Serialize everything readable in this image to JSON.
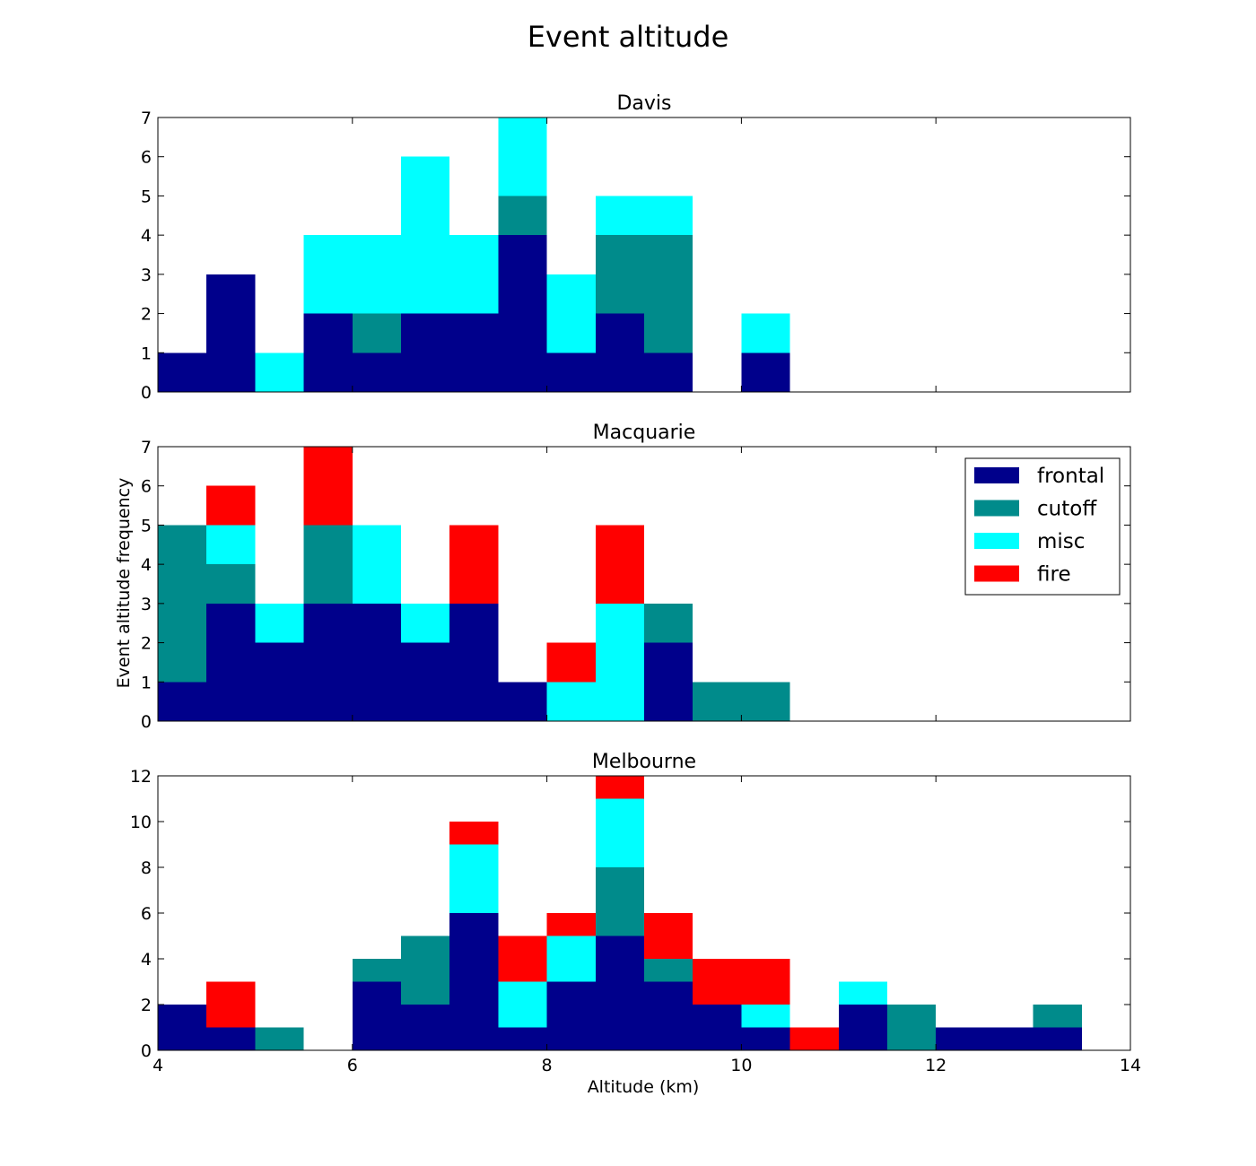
{
  "figure": {
    "title": "Event altitude",
    "xlabel": "Altitude (km)",
    "ylabel": "Event altitude frequency"
  },
  "colors": {
    "frontal": "#00008b",
    "cutoff": "#008b8b",
    "misc": "#00ffff",
    "fire": "#ff0000"
  },
  "legend": {
    "placement": "upper-right of Macquarie panel",
    "entries": [
      "frontal",
      "cutoff",
      "misc",
      "fire"
    ]
  },
  "chart_data": [
    {
      "type": "bar",
      "stacked": true,
      "title": "Davis",
      "xlim": [
        4,
        14
      ],
      "ylim": [
        0,
        7
      ],
      "xticks": [
        4,
        6,
        8,
        10,
        12,
        14
      ],
      "yticks": [
        0,
        1,
        2,
        3,
        4,
        5,
        6,
        7
      ],
      "x_tick_labels_visible": false,
      "bin_width": 0.5,
      "bin_starts": [
        4.0,
        4.5,
        5.0,
        5.5,
        6.0,
        6.5,
        7.0,
        7.5,
        8.0,
        8.5,
        9.0,
        9.5,
        10.0
      ],
      "series": [
        {
          "name": "frontal",
          "values": [
            1,
            3,
            0,
            2,
            1,
            2,
            2,
            4,
            1,
            2,
            1,
            0,
            1
          ]
        },
        {
          "name": "cutoff",
          "values": [
            0,
            0,
            0,
            0,
            1,
            0,
            0,
            1,
            0,
            2,
            3,
            0,
            0
          ]
        },
        {
          "name": "misc",
          "values": [
            0,
            0,
            1,
            2,
            2,
            4,
            2,
            2,
            2,
            1,
            1,
            0,
            1
          ]
        },
        {
          "name": "fire",
          "values": [
            0,
            0,
            0,
            0,
            0,
            0,
            0,
            0,
            0,
            0,
            0,
            0,
            0
          ]
        }
      ]
    },
    {
      "type": "bar",
      "stacked": true,
      "title": "Macquarie",
      "xlim": [
        4,
        14
      ],
      "ylim": [
        0,
        7
      ],
      "xticks": [
        4,
        6,
        8,
        10,
        12,
        14
      ],
      "yticks": [
        0,
        1,
        2,
        3,
        4,
        5,
        6,
        7
      ],
      "x_tick_labels_visible": false,
      "show_legend": true,
      "bin_width": 0.5,
      "bin_starts": [
        4.0,
        4.5,
        5.0,
        5.5,
        6.0,
        6.5,
        7.0,
        7.5,
        8.0,
        8.5,
        9.0,
        9.5,
        10.0
      ],
      "series": [
        {
          "name": "frontal",
          "values": [
            1,
            3,
            2,
            3,
            3,
            2,
            3,
            1,
            0,
            0,
            2,
            0,
            0
          ]
        },
        {
          "name": "cutoff",
          "values": [
            4,
            1,
            0,
            2,
            0,
            0,
            0,
            0,
            0,
            0,
            1,
            1,
            1
          ]
        },
        {
          "name": "misc",
          "values": [
            0,
            1,
            1,
            0,
            2,
            1,
            0,
            0,
            1,
            3,
            0,
            0,
            0
          ]
        },
        {
          "name": "fire",
          "values": [
            0,
            1,
            0,
            2,
            0,
            0,
            2,
            0,
            1,
            2,
            0,
            0,
            0
          ]
        }
      ]
    },
    {
      "type": "bar",
      "stacked": true,
      "title": "Melbourne",
      "xlim": [
        4,
        14
      ],
      "ylim": [
        0,
        12
      ],
      "xticks": [
        4,
        6,
        8,
        10,
        12,
        14
      ],
      "yticks": [
        0,
        2,
        4,
        6,
        8,
        10,
        12
      ],
      "x_tick_labels_visible": true,
      "bin_width": 0.5,
      "bin_starts": [
        4.0,
        4.5,
        5.0,
        5.5,
        6.0,
        6.5,
        7.0,
        7.5,
        8.0,
        8.5,
        9.0,
        9.5,
        10.0,
        10.5,
        11.0,
        11.5,
        12.0,
        12.5,
        13.0
      ],
      "series": [
        {
          "name": "frontal",
          "values": [
            2,
            1,
            0,
            0,
            3,
            2,
            6,
            1,
            3,
            5,
            3,
            2,
            1,
            0,
            2,
            0,
            1,
            1,
            1
          ]
        },
        {
          "name": "cutoff",
          "values": [
            0,
            0,
            1,
            0,
            1,
            3,
            0,
            0,
            0,
            3,
            1,
            0,
            0,
            0,
            0,
            2,
            0,
            0,
            1
          ]
        },
        {
          "name": "misc",
          "values": [
            0,
            0,
            0,
            0,
            0,
            0,
            3,
            2,
            2,
            3,
            0,
            0,
            1,
            0,
            1,
            0,
            0,
            0,
            0
          ]
        },
        {
          "name": "fire",
          "values": [
            0,
            2,
            0,
            0,
            0,
            0,
            1,
            2,
            1,
            1,
            2,
            2,
            2,
            1,
            0,
            0,
            0,
            0,
            0
          ]
        }
      ]
    }
  ]
}
